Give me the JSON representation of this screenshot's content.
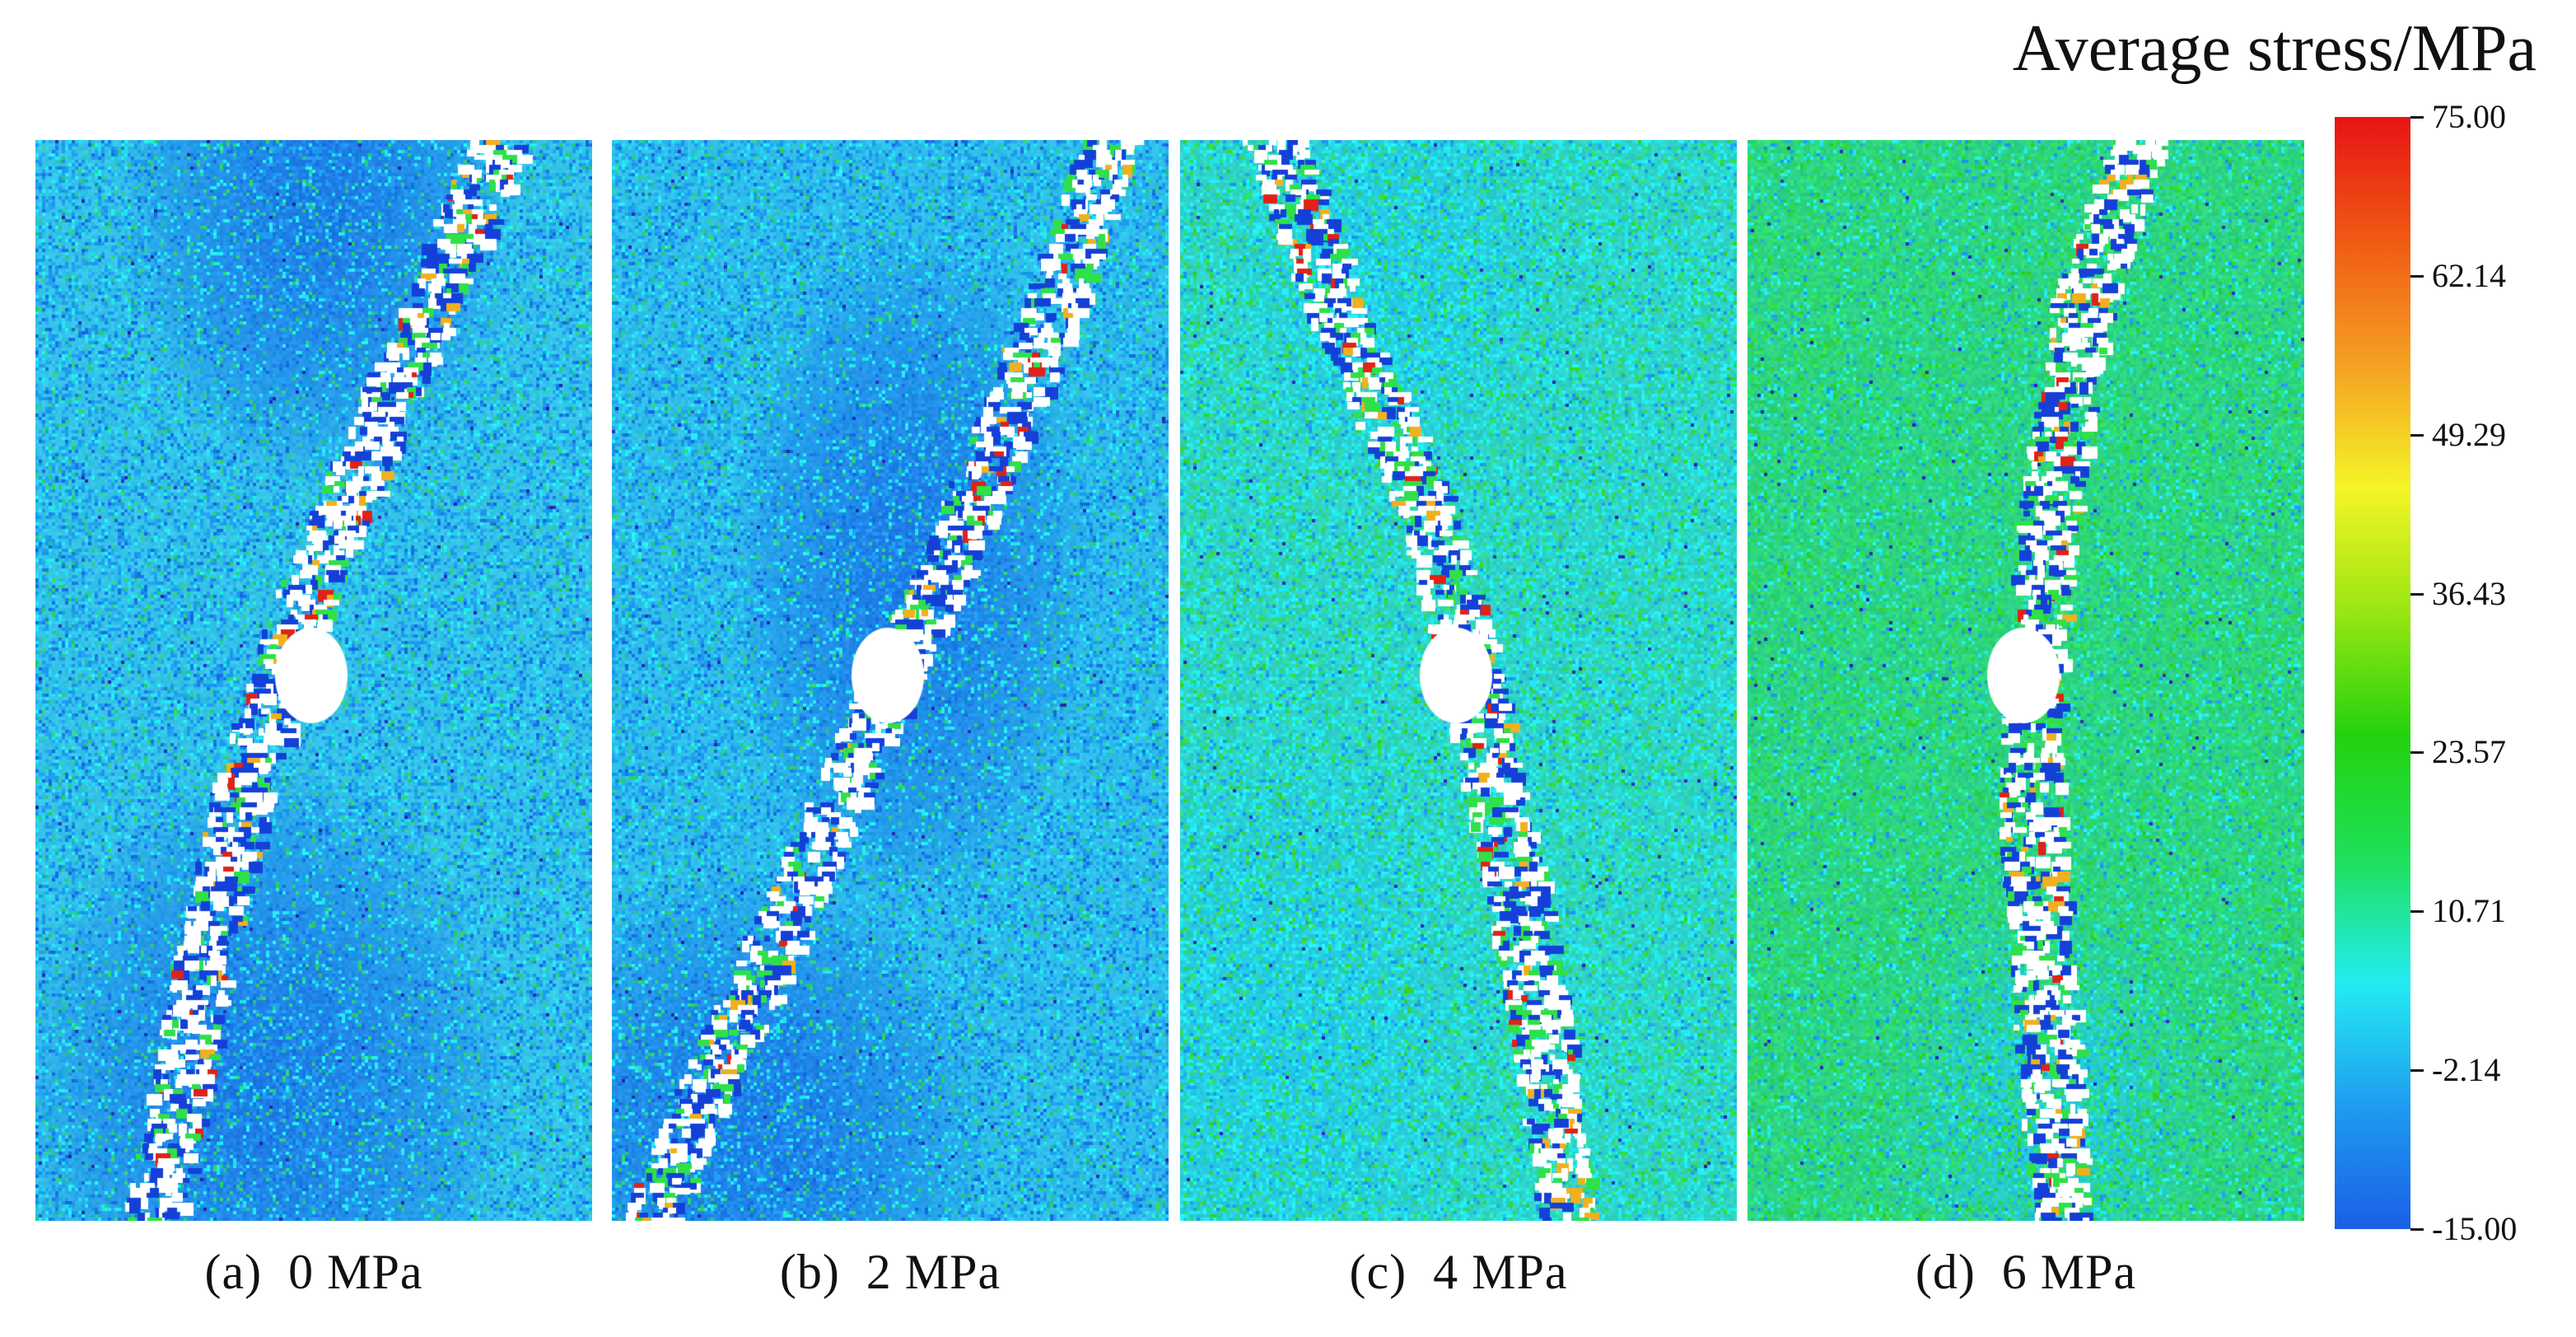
{
  "colorbar": {
    "title": "Average stress/MPa",
    "min": -15.0,
    "max": 75.0,
    "tick_labels": [
      "75.00",
      "62.14",
      "49.29",
      "36.43",
      "23.57",
      "10.71",
      "-2.14",
      "-15.00"
    ],
    "colors": [
      "#1a5fe6",
      "#1f9cf0",
      "#23ecf2",
      "#1ee05a",
      "#23d20e",
      "#9ae612",
      "#f5f526",
      "#f5a023",
      "#f05a14",
      "#e61414"
    ]
  },
  "panels": [
    {
      "id": "a",
      "caption": "(a)  0 MPa",
      "confining_pressure": "0 MPa",
      "background_color": "#34c4e8",
      "crack_direction": "inclined lower-left to upper-right"
    },
    {
      "id": "b",
      "caption": "(b)  2 MPa",
      "confining_pressure": "2 MPa",
      "background_color": "#2fc0ea",
      "crack_direction": "inclined lower-left to upper-right"
    },
    {
      "id": "c",
      "caption": "(c)  4 MPa",
      "confining_pressure": "4 MPa",
      "background_color": "#2ed4c2",
      "crack_direction": "top-left to hole, then downward"
    },
    {
      "id": "d",
      "caption": "(d)  6 MPa",
      "confining_pressure": "6 MPa",
      "background_color": "#2cd18a",
      "crack_direction": "nearly vertical through hole"
    }
  ]
}
